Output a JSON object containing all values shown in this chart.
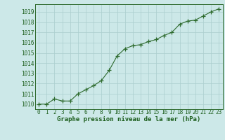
{
  "x": [
    0,
    1,
    2,
    3,
    4,
    5,
    6,
    7,
    8,
    9,
    10,
    11,
    12,
    13,
    14,
    15,
    16,
    17,
    18,
    19,
    20,
    21,
    22,
    23
  ],
  "y": [
    1010.0,
    1010.0,
    1010.5,
    1010.3,
    1010.3,
    1011.0,
    1011.4,
    1011.8,
    1012.3,
    1013.3,
    1014.7,
    1015.4,
    1015.7,
    1015.8,
    1016.1,
    1016.3,
    1016.7,
    1017.0,
    1017.8,
    1018.1,
    1018.2,
    1018.6,
    1019.0,
    1019.3
  ],
  "line_color": "#2d6a2d",
  "marker": "+",
  "bg_color": "#cce8e8",
  "grid_color": "#aacece",
  "xlabel": "Graphe pression niveau de la mer (hPa)",
  "xlabel_color": "#1a5c1a",
  "tick_color": "#1a5c1a",
  "axis_color": "#2d6a2d",
  "ylim": [
    1009.5,
    1019.75
  ],
  "xlim": [
    -0.5,
    23.5
  ],
  "yticks": [
    1010,
    1011,
    1012,
    1013,
    1014,
    1015,
    1016,
    1017,
    1018,
    1019
  ],
  "xticks": [
    0,
    1,
    2,
    3,
    4,
    5,
    6,
    7,
    8,
    9,
    10,
    11,
    12,
    13,
    14,
    15,
    16,
    17,
    18,
    19,
    20,
    21,
    22,
    23
  ],
  "line_width": 0.8,
  "marker_size": 4,
  "tick_fontsize": 5.5,
  "xlabel_fontsize": 6.5
}
